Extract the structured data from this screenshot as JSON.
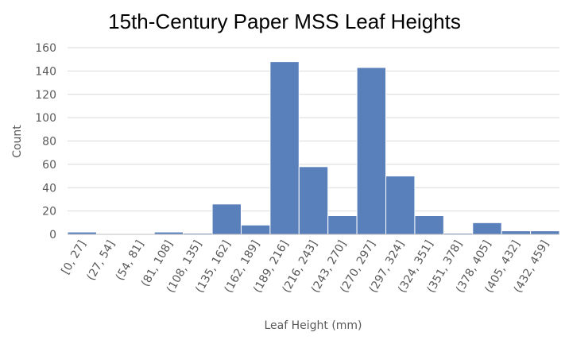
{
  "chart_data": {
    "type": "bar",
    "title": "15th-Century Paper MSS Leaf Heights",
    "xlabel": "Leaf Height (mm)",
    "ylabel": "Count",
    "ylim": [
      0,
      160
    ],
    "yticks": [
      0,
      20,
      40,
      60,
      80,
      100,
      120,
      140,
      160
    ],
    "grid": true,
    "categories": [
      "[0, 27]",
      "(27, 54]",
      "(54, 81]",
      "(81, 108]",
      "(108, 135]",
      "(135, 162]",
      "(162, 189]",
      "(189, 216]",
      "(216, 243]",
      "(243, 270]",
      "(270, 297]",
      "(297, 324]",
      "(324, 351]",
      "(351, 378]",
      "(378, 405]",
      "(405, 432]",
      "(432, 459]"
    ],
    "values": [
      2,
      0,
      0,
      2,
      1,
      26,
      8,
      148,
      58,
      16,
      143,
      50,
      16,
      1,
      10,
      3,
      3
    ],
    "colors": {
      "bar": "#5a80bc",
      "grid": "#d9d9d9",
      "axis": "#bfbfbf"
    }
  }
}
